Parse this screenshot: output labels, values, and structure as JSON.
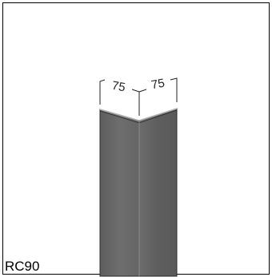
{
  "model": {
    "label": "RC90"
  },
  "dimensions": {
    "left_flange": "75",
    "right_flange": "75"
  },
  "colors": {
    "left_face": "#6b6b6b",
    "right_face": "#5f5f5f",
    "edge_highlight": "#9a9a9a",
    "outline": "#2a2a2a",
    "dimension_line": "#222222"
  }
}
